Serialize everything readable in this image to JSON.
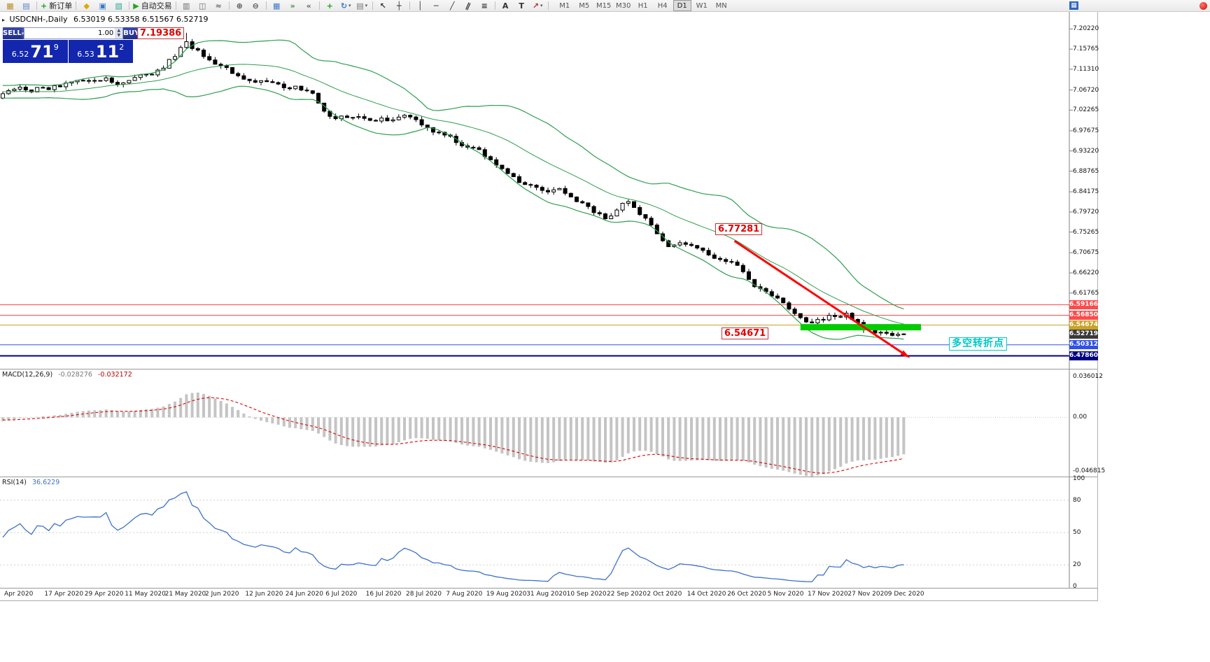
{
  "colors": {
    "band_green": "#2e9e4f",
    "trend_red": "#ff0000",
    "support_green": "#00cc00",
    "macd_hist": "#c4c4c4",
    "macd_signal": "#e00000",
    "rsi_line": "#3e71c9"
  },
  "toolbar": {
    "items": [
      {
        "icon": "chart-window-icon"
      },
      {
        "icon": "profiles-icon"
      },
      {
        "sep": true
      },
      {
        "icon": "new-order-icon",
        "label": "新订单"
      },
      {
        "sep": true
      },
      {
        "icon": "metaquotes-icon"
      },
      {
        "icon": "terminal-icon"
      },
      {
        "icon": "editor-icon"
      },
      {
        "sep": true
      },
      {
        "icon": "autotrading-icon",
        "label": "自动交易"
      },
      {
        "sep": true
      },
      {
        "icon": "bar-chart-icon"
      },
      {
        "icon": "candlestick-chart-icon"
      },
      {
        "icon": "line-chart-icon"
      },
      {
        "sep": true
      },
      {
        "icon": "zoom-in-icon"
      },
      {
        "icon": "zoom-out-icon"
      },
      {
        "sep": true
      },
      {
        "icon": "tile-windows-icon"
      },
      {
        "icon": "auto-scroll-icon"
      },
      {
        "icon": "chart-shift-icon"
      },
      {
        "sep": true
      },
      {
        "icon": "add-indicator-icon"
      },
      {
        "icon": "refresh-icon",
        "dropdown": true
      },
      {
        "icon": "templates-icon",
        "dropdown": true
      },
      {
        "sep": true
      },
      {
        "icon": "cursor-icon"
      },
      {
        "icon": "crosshair-icon"
      },
      {
        "sep": true
      },
      {
        "icon": "vertical-line-icon"
      },
      {
        "icon": "horizontal-line-icon"
      },
      {
        "icon": "trendline-icon"
      },
      {
        "icon": "channel-icon"
      },
      {
        "icon": "fibonacci-icon"
      },
      {
        "sep": true
      },
      {
        "icon": "text-icon"
      },
      {
        "icon": "label-icon"
      },
      {
        "icon": "arrows-icon",
        "dropdown": true
      },
      {
        "sep": true
      }
    ],
    "timeframes": [
      "M1",
      "M5",
      "M15",
      "M30",
      "H1",
      "H4",
      "D1",
      "W1",
      "MN"
    ],
    "active_timeframe": "D1"
  },
  "chart_header": {
    "symbol_period": "USDCNH-,Daily",
    "ohlc": "6.53019 6.53358 6.51567 6.52719"
  },
  "trade_panel": {
    "sell_label": "SELL",
    "buy_label": "BUY",
    "volume": "1.00",
    "sell_price": {
      "prefix": "6.52",
      "big": "71",
      "sup": "9"
    },
    "buy_price": {
      "prefix": "6.53",
      "big": "11",
      "sup": "2"
    }
  },
  "annotations": {
    "high_label": "7.19386",
    "swing_label": "6.77281",
    "support_label": "6.54671",
    "note_label": "多空转折点"
  },
  "price_axis": [
    "7.20220",
    "7.15765",
    "7.11310",
    "7.06720",
    "7.02265",
    "6.97675",
    "6.93220",
    "6.88765",
    "6.84175",
    "6.79720",
    "6.75265",
    "6.70675",
    "6.66220",
    "6.61765"
  ],
  "macd_panel": {
    "label": "MACD(12,26,9)",
    "value_main": "-0.028276",
    "value_signal": "-0.032172",
    "axis": [
      "0.036012",
      "0.00",
      "-0.046815"
    ]
  },
  "rsi_panel": {
    "label": "RSI(14)",
    "value": "36.6229",
    "axis": [
      "100",
      "80",
      "50",
      "20",
      "0"
    ],
    "levels": [
      80,
      50,
      20
    ]
  },
  "time_axis": [
    "Apr 2020",
    "17 Apr 2020",
    "29 Apr 2020",
    "11 May 2020",
    "21 May 2020",
    "2 Jun 2020",
    "12 Jun 2020",
    "24 Jun 2020",
    "6 Jul 2020",
    "16 Jul 2020",
    "28 Jul 2020",
    "7 Aug 2020",
    "19 Aug 2020",
    "31 Aug 2020",
    "10 Sep 2020",
    "22 Sep 2020",
    "2 Oct 2020",
    "14 Oct 2020",
    "26 Oct 2020",
    "5 Nov 2020",
    "17 Nov 2020",
    "27 Nov 2020",
    "9 Dec 2020"
  ],
  "chart_data": {
    "type": "candlestick",
    "symbol": "USDCNH-",
    "timeframe": "Daily",
    "n_candles": 158,
    "candles_per_label": 7,
    "price_range": [
      6.45,
      7.24
    ],
    "anchors": [
      [
        0,
        7.065
      ],
      [
        7,
        7.072
      ],
      [
        14,
        7.08
      ],
      [
        21,
        7.088
      ],
      [
        28,
        7.112
      ],
      [
        32,
        7.168
      ],
      [
        35,
        7.138
      ],
      [
        42,
        7.087
      ],
      [
        49,
        7.076
      ],
      [
        53,
        7.068
      ],
      [
        57,
        7.014
      ],
      [
        63,
        6.996
      ],
      [
        70,
        7.006
      ],
      [
        77,
        6.963
      ],
      [
        84,
        6.921
      ],
      [
        91,
        6.856
      ],
      [
        98,
        6.842
      ],
      [
        105,
        6.788
      ],
      [
        109,
        6.826
      ],
      [
        112,
        6.786
      ],
      [
        116,
        6.716
      ],
      [
        119,
        6.726
      ],
      [
        126,
        6.696
      ],
      [
        133,
        6.618
      ],
      [
        140,
        6.556
      ],
      [
        147,
        6.577
      ],
      [
        150,
        6.54
      ],
      [
        154,
        6.527
      ],
      [
        157,
        6.52719
      ]
    ],
    "peak_idx": 32,
    "high_annotation": 7.19386,
    "last_close": 6.52719,
    "indicators": {
      "bollinger": {
        "period": 20,
        "deviation": 2
      },
      "macd": {
        "fast": 12,
        "slow": 26,
        "signal": 9
      },
      "rsi": {
        "period": 14
      }
    },
    "trendline": {
      "from": [
        127.5,
        6.733
      ],
      "to": [
        157.5,
        6.479
      ]
    },
    "support_zone": {
      "from_idx": 139,
      "to_idx": 160,
      "price": 6.542
    },
    "price_lines": [
      {
        "price": 6.59166,
        "label": "6.59166",
        "color": "#ff4a4a",
        "width": 1
      },
      {
        "price": 6.5685,
        "label": "6.56850",
        "color": "#ff4a4a",
        "width": 1
      },
      {
        "price": 6.54674,
        "label": "6.54674",
        "color": "#c9a227",
        "width": 1
      },
      {
        "price": 6.50312,
        "label": "6.50312",
        "color": "#3050e8",
        "width": 1
      },
      {
        "price": 6.4786,
        "label": "6.47860",
        "color": "#000080",
        "width": 2
      }
    ],
    "bid": {
      "price": 6.52719,
      "label": "6.52719",
      "color": "#3a3a3a"
    }
  }
}
